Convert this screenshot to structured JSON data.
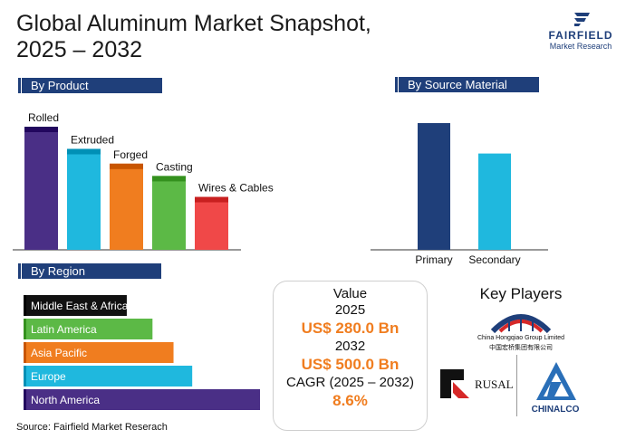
{
  "title_line1": "Global Aluminum Market Snapshot,",
  "title_line2": "2025 – 2032",
  "logo": {
    "name": "FAIRFIELD",
    "sub": "Market Research",
    "icon": "fairfield-logo-icon",
    "color": "#1f3f7a"
  },
  "sections": {
    "product": "By Product",
    "source_material": "By Source Material",
    "region": "By Region"
  },
  "chart_data": [
    {
      "type": "bar",
      "title": "By Product",
      "categories": [
        "Rolled",
        "Extruded",
        "Forged",
        "Casting",
        "Wires & Cables"
      ],
      "values": [
        100,
        82,
        70,
        60,
        43
      ],
      "colors": [
        "#4a2f86",
        "#1fb8de",
        "#f07d1f",
        "#5cb946",
        "#f04848"
      ]
    },
    {
      "type": "bar",
      "title": "By Source Material",
      "categories": [
        "Primary",
        "Secondary"
      ],
      "values": [
        100,
        76
      ],
      "colors": [
        "#1f3f7a",
        "#1fb8de"
      ]
    },
    {
      "type": "bar",
      "orientation": "horizontal",
      "title": "By Region",
      "categories": [
        "Middle East & Africa",
        "Latin America",
        "Asia Pacific",
        "Europe",
        "North America"
      ],
      "values": [
        43,
        54,
        63,
        71,
        100
      ],
      "colors": [
        "#111111",
        "#5cb946",
        "#f07d1f",
        "#1fb8de",
        "#4a2f86"
      ]
    }
  ],
  "value_box": {
    "label": "Value",
    "year1": "2025",
    "value1": "US$ 280.0 Bn",
    "year2": "2032",
    "value2": "US$ 500.0 Bn",
    "cagr_label": "CAGR (2025 – 2032)",
    "cagr_value": "8.6%",
    "accent": "#f07d1f"
  },
  "key_players": {
    "title": "Key Players",
    "players": [
      {
        "name": "China Hongqiao Group Limited",
        "name_cn": "中国宏桥集团有限公司",
        "icon": "hongqiao-logo-icon"
      },
      {
        "name": "RUSAL",
        "icon": "rusal-logo-icon"
      },
      {
        "name": "CHINALCO",
        "icon": "chinalco-logo-icon"
      }
    ]
  },
  "source": "Source: Fairfield Market Reserach"
}
